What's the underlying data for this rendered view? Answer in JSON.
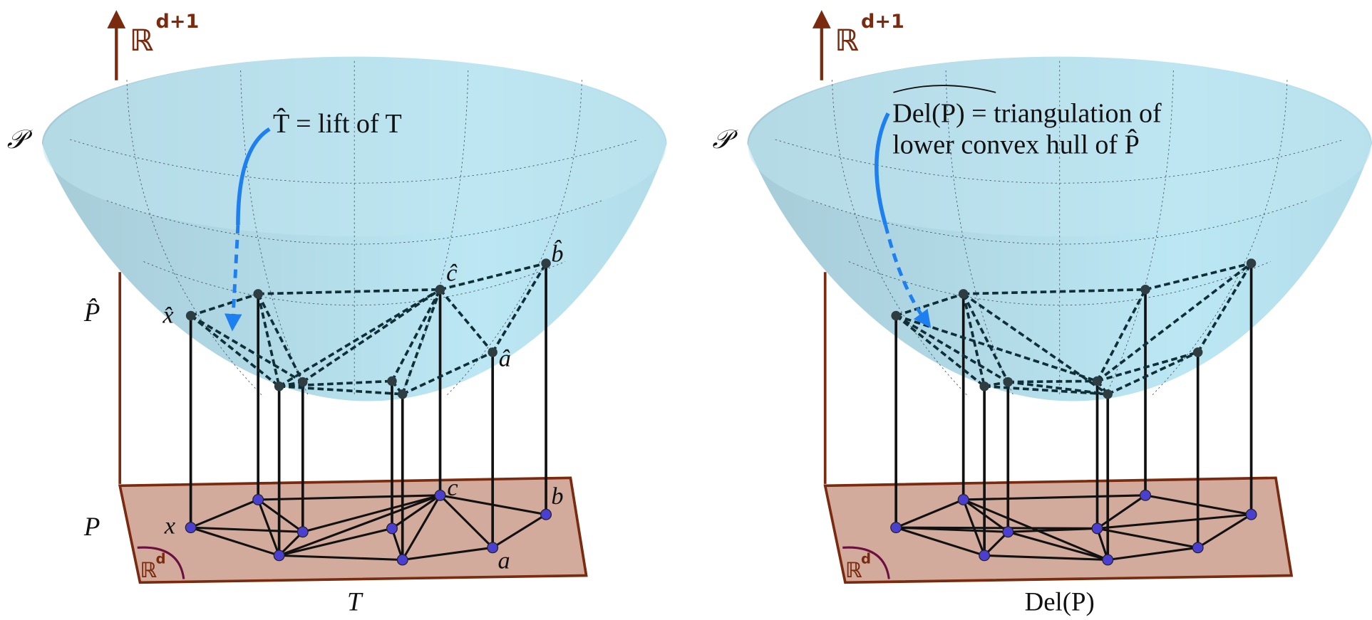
{
  "panels": [
    {
      "axis_label": "ℝ",
      "axis_sup": "d+1",
      "surface_label": "𝒫",
      "annotation": [
        "T̂ = lift of T"
      ],
      "lifted_label": "P̂",
      "base_label": "P",
      "plane_label": "ℝ",
      "plane_sup": "d",
      "point_labels": {
        "x_hat": "x̂",
        "c_hat": "ĉ",
        "b_hat": "b̂",
        "a_hat": "â",
        "x": "x",
        "c": "c",
        "b": "b",
        "a": "a"
      },
      "caption": "T"
    },
    {
      "axis_label": "ℝ",
      "axis_sup": "d+1",
      "surface_label": "𝒫",
      "annotation": [
        "Del(P) = triangulation of",
        "lower convex hull of P̂"
      ],
      "plane_label": "ℝ",
      "plane_sup": "d",
      "caption": "Del(P)"
    }
  ]
}
